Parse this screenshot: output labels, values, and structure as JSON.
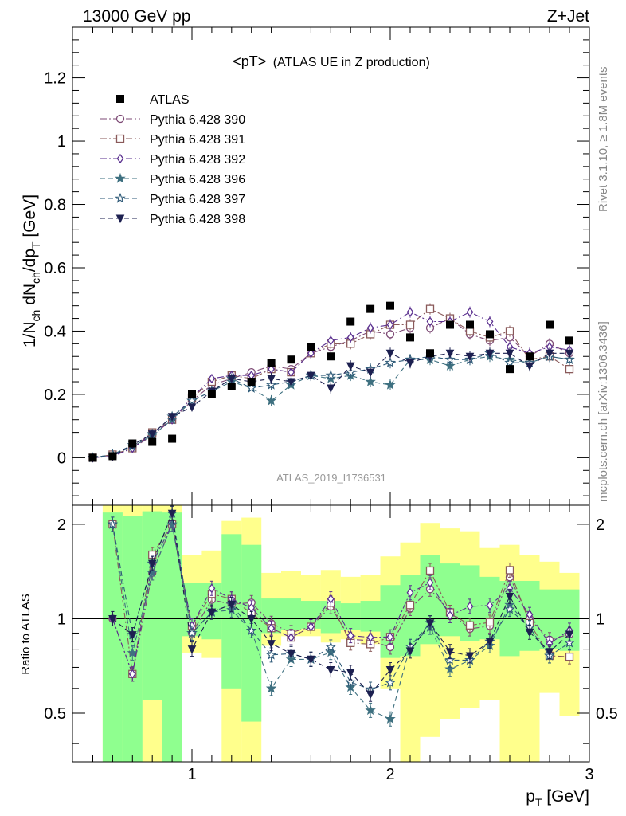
{
  "header": {
    "left": "13000 GeV pp",
    "right": "Z+Jet"
  },
  "side_labels": {
    "rivet": "Rivet 3.1.10, ≥ 1.8M events",
    "mcplots": "mcplots.cern.ch [arXiv:1306.3436]"
  },
  "chart_data": {
    "type": "scatter",
    "title": "<pT> (ATLAS UE in Z production)",
    "title_main": "<pT>",
    "title_sub": "(ATLAS UE in Z production)",
    "analysis_id": "ATLAS_2019_I1736531",
    "xlabel": "p_T [GeV]",
    "ylabel": "1/N_ch dN_ch/dp_T [GeV]",
    "xlim": [
      0.4,
      3.0
    ],
    "ylim": [
      -0.15,
      1.36
    ],
    "yticks": [
      0,
      0.2,
      0.4,
      0.6,
      0.8,
      1,
      1.2
    ],
    "ytick_labels": [
      "0",
      "0.2",
      "0.4",
      "0.6",
      "0.8",
      "1",
      "1.2"
    ],
    "xticks": [
      1,
      2,
      3
    ],
    "xtick_labels": [
      "1",
      "2",
      "3"
    ],
    "ratio_ylabel": "Ratio to ATLAS",
    "ratio_ylim": [
      0.35,
      2.3
    ],
    "ratio_yticks": [
      0.5,
      1,
      2
    ],
    "ratio_ytick_labels": [
      "0.5",
      "1",
      "2"
    ],
    "legend_position": "top-left",
    "x": [
      0.5,
      0.6,
      0.7,
      0.8,
      0.9,
      1.0,
      1.1,
      1.2,
      1.3,
      1.4,
      1.5,
      1.6,
      1.7,
      1.8,
      1.9,
      2.0,
      2.1,
      2.2,
      2.3,
      2.4,
      2.5,
      2.6,
      2.7,
      2.8,
      2.9
    ],
    "data": {
      "name": "ATLAS",
      "color": "#000000",
      "values": [
        0.0,
        0.005,
        0.045,
        0.05,
        0.06,
        0.2,
        0.2,
        0.225,
        0.24,
        0.3,
        0.31,
        0.35,
        0.32,
        0.43,
        0.47,
        0.48,
        0.38,
        0.33,
        0.42,
        0.42,
        0.39,
        0.28,
        0.32,
        0.42,
        0.37
      ]
    },
    "series": [
      {
        "name": "Pythia 6.428 390",
        "color": "#7d4a75",
        "marker": "circle-open",
        "dash": "8,3,2,3",
        "values": [
          0.0,
          0.005,
          0.03,
          0.07,
          0.12,
          0.18,
          0.23,
          0.25,
          0.27,
          0.29,
          0.28,
          0.33,
          0.35,
          0.37,
          0.4,
          0.39,
          0.41,
          0.41,
          0.44,
          0.39,
          0.37,
          0.38,
          0.32,
          0.36,
          0.33
        ]
      },
      {
        "name": "Pythia 6.428 391",
        "color": "#8a5a5a",
        "marker": "square-open",
        "dash": "8,3,2,3",
        "values": [
          0.0,
          0.01,
          0.03,
          0.08,
          0.12,
          0.19,
          0.24,
          0.26,
          0.25,
          0.28,
          0.27,
          0.33,
          0.36,
          0.36,
          0.39,
          0.42,
          0.42,
          0.47,
          0.44,
          0.4,
          0.38,
          0.4,
          0.31,
          0.32,
          0.28
        ]
      },
      {
        "name": "Pythia 6.428 392",
        "color": "#5a2f8f",
        "marker": "diamond-open",
        "dash": "8,3,2,3",
        "values": [
          0.0,
          0.005,
          0.03,
          0.075,
          0.12,
          0.19,
          0.25,
          0.26,
          0.26,
          0.28,
          0.27,
          0.33,
          0.37,
          0.38,
          0.41,
          0.42,
          0.46,
          0.43,
          0.43,
          0.46,
          0.43,
          0.35,
          0.33,
          0.35,
          0.34
        ]
      },
      {
        "name": "Pythia 6.428 396",
        "color": "#3e7080",
        "marker": "star-filled",
        "dash": "6,4",
        "values": [
          0.0,
          0.01,
          0.035,
          0.07,
          0.12,
          0.18,
          0.21,
          0.24,
          0.22,
          0.18,
          0.23,
          0.26,
          0.25,
          0.26,
          0.24,
          0.23,
          0.31,
          0.31,
          0.29,
          0.31,
          0.32,
          0.31,
          0.3,
          0.32,
          0.31
        ]
      },
      {
        "name": "Pythia 6.428 397",
        "color": "#2e5a78",
        "marker": "star-open",
        "dash": "6,4",
        "values": [
          0.0,
          0.01,
          0.04,
          0.075,
          0.13,
          0.18,
          0.21,
          0.25,
          0.22,
          0.23,
          0.24,
          0.26,
          0.26,
          0.27,
          0.28,
          0.3,
          0.31,
          0.32,
          0.31,
          0.31,
          0.33,
          0.3,
          0.3,
          0.32,
          0.31
        ]
      },
      {
        "name": "Pythia 6.428 398",
        "color": "#1d2050",
        "marker": "triangle-down-filled",
        "dash": "6,4",
        "values": [
          0.0,
          0.005,
          0.04,
          0.075,
          0.13,
          0.16,
          0.21,
          0.25,
          0.24,
          0.25,
          0.24,
          0.26,
          0.22,
          0.29,
          0.27,
          0.33,
          0.3,
          0.32,
          0.33,
          0.32,
          0.33,
          0.33,
          0.29,
          0.33,
          0.33
        ]
      }
    ],
    "ratio_band_yellow": {
      "low": [
        null,
        0.35,
        0.35,
        0.35,
        0.35,
        0.78,
        0.75,
        0.35,
        0.35,
        0.82,
        0.88,
        0.88,
        0.84,
        0.86,
        0.83,
        0.6,
        0.35,
        0.42,
        0.48,
        0.52,
        0.55,
        0.35,
        0.35,
        0.58,
        0.49
      ],
      "high": [
        null,
        2.3,
        2.3,
        2.3,
        2.3,
        1.6,
        1.65,
        2.05,
        2.1,
        1.4,
        1.42,
        1.38,
        1.43,
        1.36,
        1.38,
        1.58,
        1.75,
        2.02,
        1.94,
        1.9,
        1.68,
        1.72,
        1.6,
        1.52,
        1.4
      ]
    },
    "ratio_band_green": {
      "low": [
        null,
        0.35,
        0.35,
        0.55,
        0.35,
        0.88,
        0.86,
        0.6,
        0.47,
        0.9,
        0.92,
        0.93,
        0.9,
        0.92,
        0.91,
        0.75,
        0.76,
        0.83,
        0.88,
        0.85,
        0.86,
        0.76,
        0.79,
        0.8,
        0.79
      ],
      "high": [
        null,
        2.18,
        2.12,
        2.2,
        2.18,
        1.3,
        1.3,
        1.86,
        1.72,
        1.16,
        1.16,
        1.14,
        1.14,
        1.12,
        1.14,
        1.28,
        1.38,
        1.6,
        1.5,
        1.48,
        1.36,
        1.32,
        1.32,
        1.24,
        1.24
      ]
    }
  }
}
